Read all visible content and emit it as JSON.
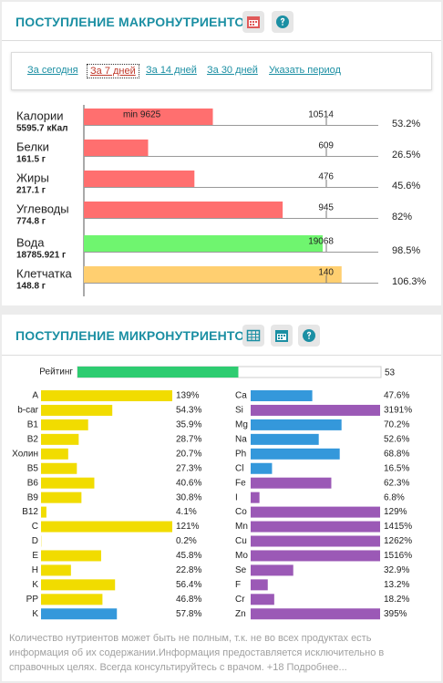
{
  "macro": {
    "title": "ПОСТУПЛЕНИЕ МАКРОНУТРИЕНТОВ",
    "tabs": [
      "За сегодня",
      "За 7 дней",
      "За 14 дней",
      "За 30 дней",
      "Указать период"
    ],
    "selected_tab": 1,
    "rows": [
      {
        "name": "Калории",
        "amount": "5595.7 кКал",
        "min": "min 9625",
        "norm": 10514,
        "percent": 53.2,
        "percent_label": "53.2%",
        "color": "#ff6f6f"
      },
      {
        "name": "Белки",
        "amount": "161.5 г",
        "norm": 609,
        "percent": 26.5,
        "percent_label": "26.5%",
        "color": "#ff6f6f"
      },
      {
        "name": "Жиры",
        "amount": "217.1 г",
        "norm": 476,
        "percent": 45.6,
        "percent_label": "45.6%",
        "color": "#ff6f6f"
      },
      {
        "name": "Углеводы",
        "amount": "774.8 г",
        "norm": 945,
        "percent": 82,
        "percent_label": "82%",
        "color": "#ff6f6f"
      },
      {
        "name": "Вода",
        "amount": "18785.921 г",
        "norm": 19068,
        "percent": 98.5,
        "percent_label": "98.5%",
        "color": "#6ff56f"
      },
      {
        "name": "Клетчатка",
        "amount": "148.8 г",
        "norm": 140,
        "percent": 106.3,
        "percent_label": "106.3%",
        "color": "#ffcf70"
      }
    ]
  },
  "micro": {
    "title": "ПОСТУПЛЕНИЕ МИКРОНУТРИЕНТОВ",
    "rating": {
      "label": "Рейтинг",
      "value": 53,
      "color": "#2ecc71"
    },
    "left": [
      {
        "name": "A",
        "value": 139,
        "label": "139%",
        "color": "#f1dc00"
      },
      {
        "name": "b-car",
        "value": 54.3,
        "label": "54.3%",
        "color": "#f1dc00"
      },
      {
        "name": "B1",
        "value": 35.9,
        "label": "35.9%",
        "color": "#f1dc00"
      },
      {
        "name": "B2",
        "value": 28.7,
        "label": "28.7%",
        "color": "#f1dc00"
      },
      {
        "name": "Холин",
        "value": 20.7,
        "label": "20.7%",
        "color": "#f1dc00"
      },
      {
        "name": "B5",
        "value": 27.3,
        "label": "27.3%",
        "color": "#f1dc00"
      },
      {
        "name": "B6",
        "value": 40.6,
        "label": "40.6%",
        "color": "#f1dc00"
      },
      {
        "name": "B9",
        "value": 30.8,
        "label": "30.8%",
        "color": "#f1dc00"
      },
      {
        "name": "B12",
        "value": 4.1,
        "label": "4.1%",
        "color": "#f1dc00"
      },
      {
        "name": "C",
        "value": 121,
        "label": "121%",
        "color": "#f1dc00"
      },
      {
        "name": "D",
        "value": 0.2,
        "label": "0.2%",
        "color": "#f1dc00"
      },
      {
        "name": "E",
        "value": 45.8,
        "label": "45.8%",
        "color": "#f1dc00"
      },
      {
        "name": "H",
        "value": 22.8,
        "label": "22.8%",
        "color": "#f1dc00"
      },
      {
        "name": "K",
        "value": 56.4,
        "label": "56.4%",
        "color": "#f1dc00"
      },
      {
        "name": "PP",
        "value": 46.8,
        "label": "46.8%",
        "color": "#f1dc00"
      },
      {
        "name": "K",
        "value": 57.8,
        "label": "57.8%",
        "color": "#3498db"
      }
    ],
    "right": [
      {
        "name": "Ca",
        "value": 47.6,
        "label": "47.6%",
        "color": "#3498db"
      },
      {
        "name": "Si",
        "value": 3191,
        "label": "3191%",
        "color": "#9b59b6"
      },
      {
        "name": "Mg",
        "value": 70.2,
        "label": "70.2%",
        "color": "#3498db"
      },
      {
        "name": "Na",
        "value": 52.6,
        "label": "52.6%",
        "color": "#3498db"
      },
      {
        "name": "Ph",
        "value": 68.8,
        "label": "68.8%",
        "color": "#3498db"
      },
      {
        "name": "Cl",
        "value": 16.5,
        "label": "16.5%",
        "color": "#3498db"
      },
      {
        "name": "Fe",
        "value": 62.3,
        "label": "62.3%",
        "color": "#9b59b6"
      },
      {
        "name": "I",
        "value": 6.8,
        "label": "6.8%",
        "color": "#9b59b6"
      },
      {
        "name": "Co",
        "value": 129,
        "label": "129%",
        "color": "#9b59b6"
      },
      {
        "name": "Mn",
        "value": 1415,
        "label": "1415%",
        "color": "#9b59b6"
      },
      {
        "name": "Cu",
        "value": 1262,
        "label": "1262%",
        "color": "#9b59b6"
      },
      {
        "name": "Mo",
        "value": 1516,
        "label": "1516%",
        "color": "#9b59b6"
      },
      {
        "name": "Se",
        "value": 32.9,
        "label": "32.9%",
        "color": "#9b59b6"
      },
      {
        "name": "F",
        "value": 13.2,
        "label": "13.2%",
        "color": "#9b59b6"
      },
      {
        "name": "Cr",
        "value": 18.2,
        "label": "18.2%",
        "color": "#9b59b6"
      },
      {
        "name": "Zn",
        "value": 395,
        "label": "395%",
        "color": "#9b59b6"
      }
    ]
  },
  "footer": {
    "text": "Количество нутриентов может быть не полным, т.к. не во всех продуктах есть информация об их содержании.Информация предоставляется исключительно в справочных целях. Всегда консультируйтесь с врачом. +18 ",
    "link": "Подробнее..."
  }
}
